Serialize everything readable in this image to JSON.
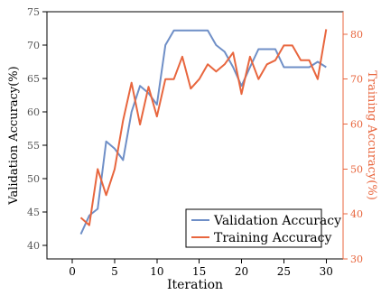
{
  "chart_data": {
    "type": "line",
    "x": [
      1,
      2,
      3,
      4,
      5,
      6,
      7,
      8,
      9,
      10,
      11,
      12,
      13,
      14,
      15,
      16,
      17,
      18,
      19,
      20,
      21,
      22,
      23,
      24,
      25,
      26,
      27,
      28,
      29,
      30
    ],
    "xlabel": "Iteration",
    "xlim": [
      -3,
      32
    ],
    "xticks": [
      0,
      5,
      10,
      15,
      20,
      25,
      30
    ],
    "grid": false,
    "legend_position": "bottom-right",
    "y_left": {
      "label": "Validation Accuracy(%)",
      "lim": [
        38,
        75
      ],
      "ticks": [
        40,
        45,
        50,
        55,
        60,
        65,
        70,
        75
      ],
      "color": "#000000"
    },
    "y_right": {
      "label": "Training Accuracy(%)",
      "lim": [
        30,
        85
      ],
      "ticks": [
        30,
        40,
        50,
        60,
        70,
        80
      ],
      "color": "#e8663e"
    },
    "series": [
      {
        "name": "Validation Accuracy",
        "axis": "left",
        "color": "#6f8fc7",
        "values": [
          41.7,
          44.5,
          45.5,
          55.6,
          54.5,
          52.8,
          60.0,
          63.9,
          62.8,
          61.1,
          70.0,
          72.2,
          72.2,
          72.2,
          72.2,
          72.2,
          70.0,
          69.0,
          66.7,
          63.9,
          66.7,
          69.4,
          69.4,
          69.4,
          66.7,
          66.7,
          66.7,
          66.7,
          67.5,
          66.7
        ]
      },
      {
        "name": "Training Accuracy",
        "axis": "right",
        "color": "#e8663e",
        "values": [
          39.2,
          37.5,
          50.0,
          44.2,
          50.0,
          60.8,
          69.2,
          59.9,
          68.3,
          61.7,
          70.0,
          70.0,
          75.0,
          67.9,
          70.0,
          73.3,
          71.7,
          73.3,
          75.9,
          66.7,
          75.0,
          70.0,
          73.3,
          74.2,
          77.5,
          77.5,
          74.2,
          74.2,
          70.0,
          81.1
        ]
      }
    ]
  }
}
